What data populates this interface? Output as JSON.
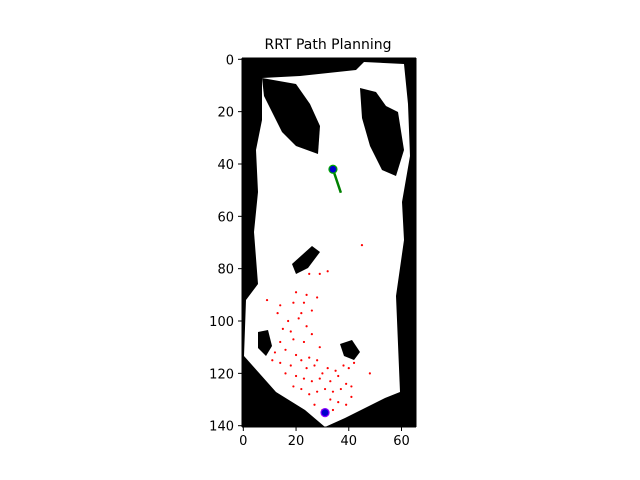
{
  "chart_data": {
    "type": "scatter",
    "title": "RRT Path Planning",
    "xlabel": "",
    "ylabel": "",
    "xlim": [
      -0.5,
      65.5
    ],
    "ylim": [
      140.5,
      -0.5
    ],
    "x_ticks": [
      0,
      20,
      40,
      60
    ],
    "y_ticks": [
      0,
      20,
      40,
      60,
      80,
      100,
      120,
      140
    ],
    "grid": false,
    "background_map": {
      "type": "occupancy-grid",
      "free_color": "#ffffff",
      "obstacle_color": "#000000"
    },
    "start_point": {
      "x": 31,
      "y": 135,
      "color": "#0000cc",
      "edge_color": "#8b00ff"
    },
    "goal_point": {
      "x": 34,
      "y": 42,
      "color": "#0000cc",
      "edge_color": "#00aa00"
    },
    "path": {
      "color": "#008000",
      "points": [
        {
          "x": 34,
          "y": 42
        },
        {
          "x": 37,
          "y": 51
        }
      ]
    },
    "samples": {
      "color": "#ff0000",
      "points": [
        [
          45,
          71
        ],
        [
          25,
          82
        ],
        [
          29,
          82
        ],
        [
          32,
          81
        ],
        [
          24,
          90
        ],
        [
          28,
          91
        ],
        [
          20,
          89
        ],
        [
          9,
          92
        ],
        [
          14,
          94
        ],
        [
          19,
          93
        ],
        [
          23,
          93
        ],
        [
          22,
          97
        ],
        [
          26,
          96
        ],
        [
          13,
          97
        ],
        [
          17,
          100
        ],
        [
          21,
          99
        ],
        [
          15,
          103
        ],
        [
          18,
          104
        ],
        [
          24,
          102
        ],
        [
          26,
          105
        ],
        [
          14,
          108
        ],
        [
          19,
          107
        ],
        [
          23,
          108
        ],
        [
          29,
          110
        ],
        [
          12,
          112
        ],
        [
          16,
          111
        ],
        [
          20,
          113
        ],
        [
          22,
          115
        ],
        [
          25,
          114
        ],
        [
          28,
          115
        ],
        [
          11,
          115
        ],
        [
          14,
          116
        ],
        [
          18,
          117
        ],
        [
          24,
          118
        ],
        [
          27,
          117
        ],
        [
          30,
          120
        ],
        [
          32,
          118
        ],
        [
          35,
          119
        ],
        [
          38,
          117
        ],
        [
          16,
          120
        ],
        [
          20,
          121
        ],
        [
          23,
          122
        ],
        [
          26,
          123
        ],
        [
          29,
          122
        ],
        [
          33,
          123
        ],
        [
          36,
          121
        ],
        [
          40,
          118
        ],
        [
          42,
          116
        ],
        [
          48,
          120
        ],
        [
          39,
          124
        ],
        [
          19,
          125
        ],
        [
          22,
          126
        ],
        [
          25,
          128
        ],
        [
          28,
          127
        ],
        [
          31,
          126
        ],
        [
          34,
          127
        ],
        [
          37,
          126
        ],
        [
          41,
          125
        ],
        [
          33,
          130
        ],
        [
          36,
          131
        ],
        [
          39,
          132
        ],
        [
          41,
          129
        ],
        [
          27,
          132
        ],
        [
          30,
          134
        ],
        [
          34,
          134
        ]
      ]
    }
  }
}
